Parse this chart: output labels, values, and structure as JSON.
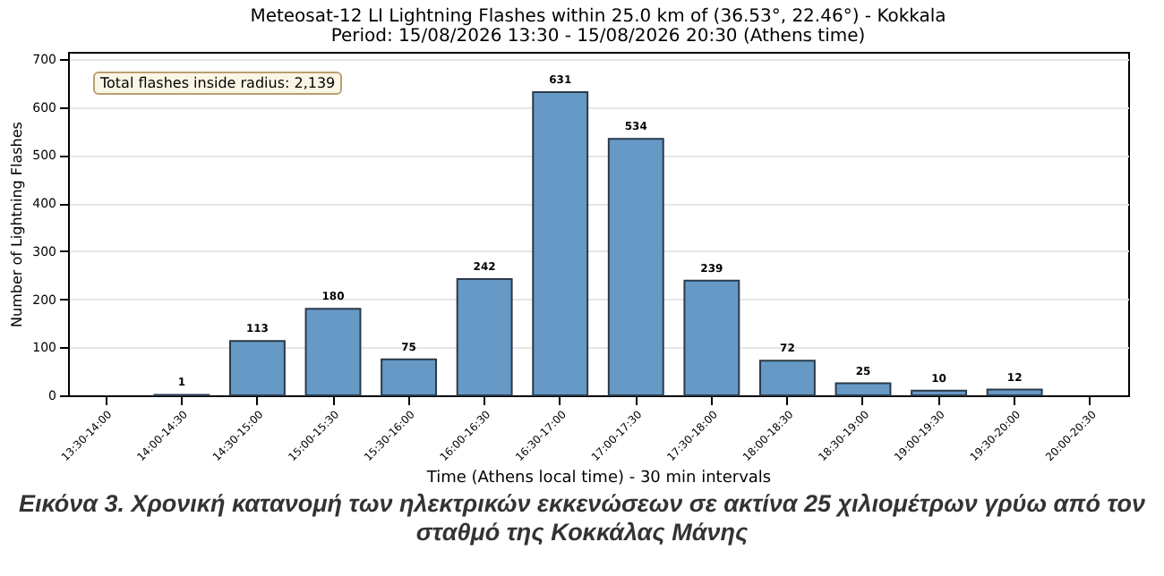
{
  "chart_data": {
    "type": "bar",
    "title": "Meteosat-12 LI Lightning Flashes within 25.0 km of (36.53°, 22.46°) - Kokkala",
    "subtitle": "Period: 15/08/2026 13:30 - 15/08/2026 20:30 (Athens time)",
    "xlabel": "Time (Athens local time) - 30 min intervals",
    "ylabel": "Number of Lightning Flashes",
    "categories": [
      "13:30-14:00",
      "14:00-14:30",
      "14:30-15:00",
      "15:00-15:30",
      "15:30-16:00",
      "16:00-16:30",
      "16:30-17:00",
      "17:00-17:30",
      "17:30-18:00",
      "18:00-18:30",
      "18:30-19:00",
      "19:00-19:30",
      "19:30-20:00",
      "20:00-20:30"
    ],
    "values": [
      0,
      1,
      113,
      180,
      75,
      242,
      631,
      534,
      239,
      72,
      25,
      10,
      12,
      0
    ],
    "value_labels": [
      null,
      "1",
      "113",
      "180",
      "75",
      "242",
      "631",
      "534",
      "239",
      "72",
      "25",
      "10",
      "12",
      null
    ],
    "color": "#6699c6",
    "ylim": [
      0,
      715
    ],
    "yticks": [
      0,
      100,
      200,
      300,
      400,
      500,
      600,
      700
    ],
    "grid": "y",
    "annotations": [
      "Total flashes inside radius: 2,139",
      "Εικόνα 3. Χρονική κατανομή των ηλεκτρικών εκκενώσεων σε ακτίνα 25 χιλιομέτρων γρύω από τον σταθμό της Κοκκάλας Μάνης"
    ]
  }
}
